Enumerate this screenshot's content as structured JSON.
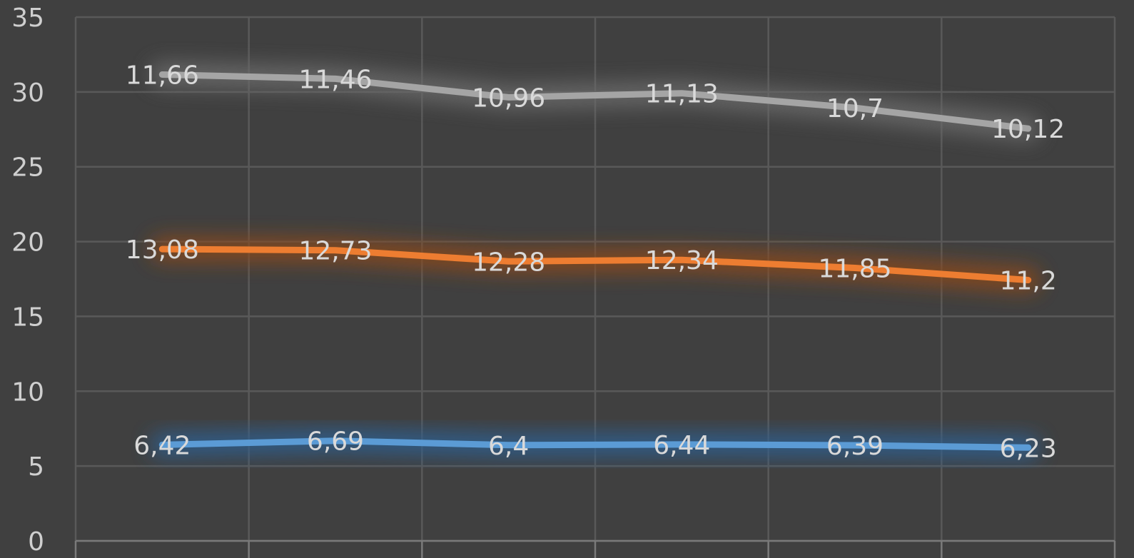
{
  "chart_data": {
    "type": "line",
    "categories": [
      "",
      "",
      "",
      "",
      "",
      ""
    ],
    "ylim": [
      0,
      35
    ],
    "y_ticks": [
      "0",
      "5",
      "10",
      "15",
      "20",
      "25",
      "30",
      "35"
    ],
    "grid": true,
    "stacked": true,
    "series": [
      {
        "values": [
          6.42,
          6.69,
          6.4,
          6.44,
          6.39,
          6.23
        ],
        "labels": [
          "6,42",
          "6,69",
          "6,4",
          "6,44",
          "6,39",
          "6,23"
        ],
        "color": "#5b9bd5",
        "glow": "#2f5f8f"
      },
      {
        "values": [
          13.08,
          12.73,
          12.28,
          12.34,
          11.85,
          11.2
        ],
        "labels": [
          "13,08",
          "12,73",
          "12,28",
          "12,34",
          "11,85",
          "11,2"
        ],
        "color": "#ed7d31",
        "glow": "#8a4a1c"
      },
      {
        "values": [
          11.66,
          11.46,
          10.96,
          11.13,
          10.7,
          10.12
        ],
        "labels": [
          "11,66",
          "11,46",
          "10,96",
          "11,13",
          "10,7",
          "10,12"
        ],
        "color": "#a5a5a5",
        "glow": "#6a6a6a"
      }
    ]
  },
  "colors": {
    "background": "#404040",
    "grid": "#595959",
    "text": "#d9d9d9"
  }
}
